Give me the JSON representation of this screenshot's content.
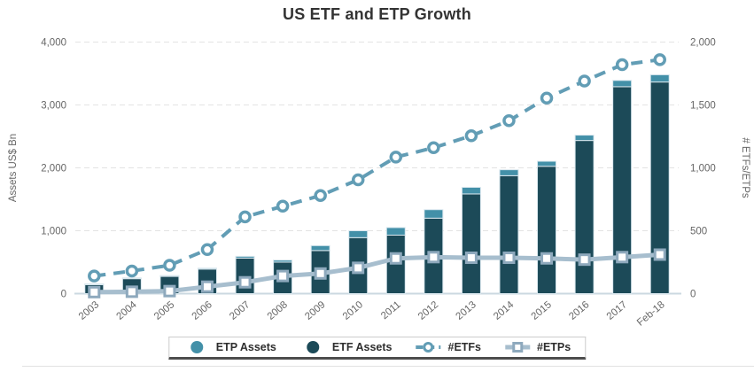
{
  "title": "US ETF and ETP Growth",
  "chart_data": {
    "type": "bar",
    "subtype": "stacked-columns-with-lines",
    "categories": [
      "2003",
      "2004",
      "2005",
      "2006",
      "2007",
      "2008",
      "2009",
      "2010",
      "2011",
      "2012",
      "2013",
      "2014",
      "2015",
      "2016",
      "2017",
      "Feb-18"
    ],
    "series": [
      {
        "name": "ETP Assets",
        "type": "column",
        "stack": "assets",
        "axis": "left",
        "color": "#4390a8",
        "values": [
          10,
          10,
          12,
          15,
          28,
          33,
          78,
          110,
          120,
          135,
          105,
          95,
          80,
          85,
          100,
          115
        ]
      },
      {
        "name": "ETF Assets",
        "type": "column",
        "stack": "assets",
        "axis": "left",
        "color": "#1c4a58",
        "values": [
          145,
          240,
          275,
          390,
          565,
          500,
          685,
          890,
          930,
          1200,
          1585,
          1875,
          2025,
          2435,
          3290,
          3365
        ]
      },
      {
        "name": "#ETFs",
        "type": "line",
        "dashed": true,
        "marker": "circle",
        "axis": "right",
        "color": "#629db5",
        "values": [
          140,
          180,
          225,
          350,
          610,
          695,
          780,
          905,
          1085,
          1160,
          1255,
          1375,
          1555,
          1690,
          1820,
          1860
        ]
      },
      {
        "name": "#ETPs",
        "type": "line",
        "dashed": false,
        "marker": "square",
        "axis": "right",
        "color": "#a7bece",
        "marker_stroke": "#8ea9bd",
        "values": [
          12,
          15,
          20,
          55,
          90,
          140,
          160,
          205,
          280,
          290,
          285,
          285,
          280,
          270,
          290,
          310
        ]
      }
    ],
    "left_axis": {
      "title": "Assets US$ Bn",
      "min": 0,
      "max": 4000,
      "tick_labels": [
        "0",
        "1,000",
        "2,000",
        "3,000",
        "4,000"
      ]
    },
    "right_axis": {
      "title": "# ETFs/ETPs",
      "min": 0,
      "max": 2000,
      "tick_labels": [
        "0",
        "500",
        "1,000",
        "1,500",
        "2,000"
      ]
    },
    "grid": "horizontal dashed",
    "legend_position": "bottom",
    "colors": {
      "grid_line": "#e3e3e3",
      "axis_line": "#cbd8e0",
      "tick_text": "#666666",
      "axis_title_text": "#666666",
      "title_text": "#333333",
      "bar_border": "#d9e7ee"
    }
  }
}
